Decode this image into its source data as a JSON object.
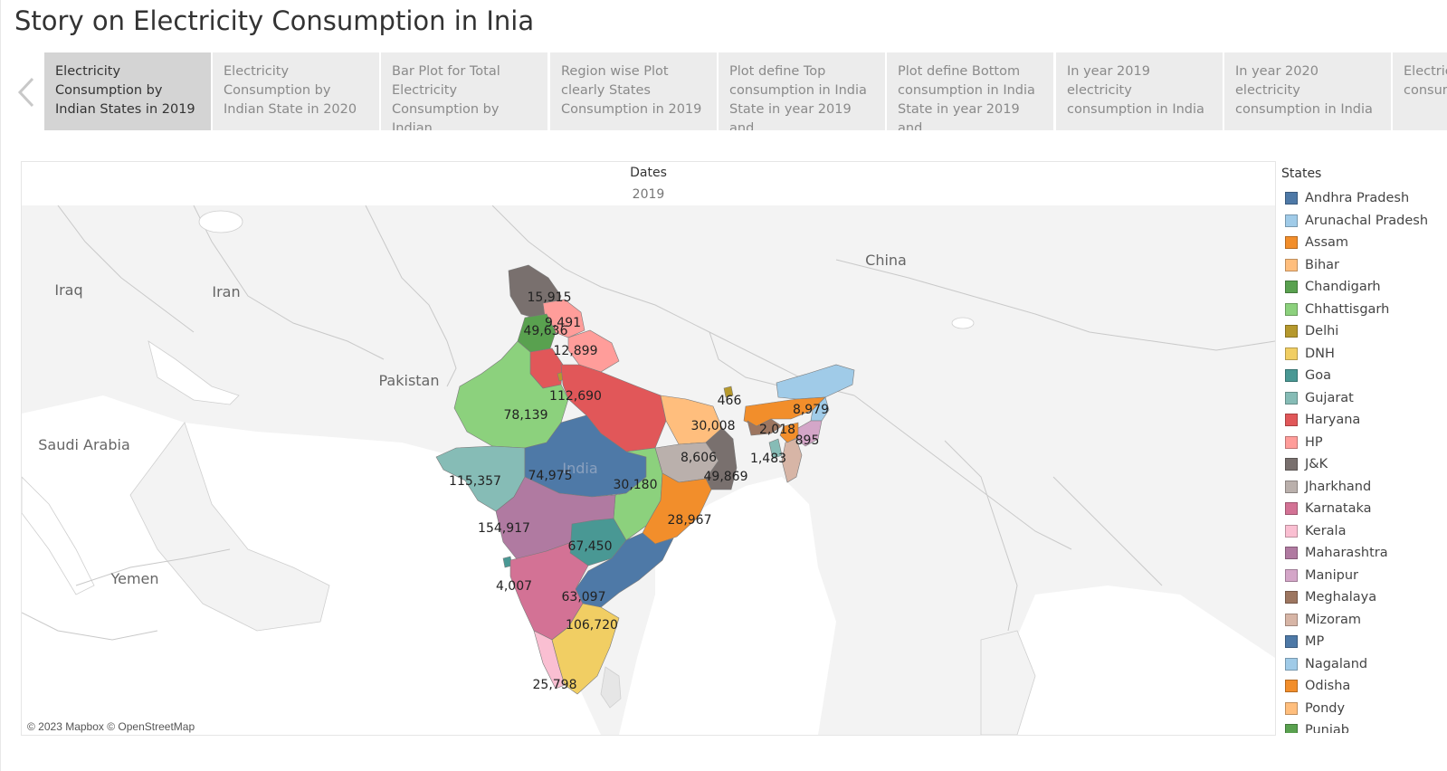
{
  "title": "Story on Electricity Consumption in Inia",
  "story_points": [
    {
      "label": "Electricity Consumption by Indian States in 2019",
      "active": true
    },
    {
      "label": "Electricity Consumption by Indian State in 2020"
    },
    {
      "label": "Bar Plot for Total Electricity Consumption by Indian"
    },
    {
      "label": "Region wise Plot clearly States Consumption in 2019"
    },
    {
      "label": "Plot define Top consumption in India State in year 2019 and"
    },
    {
      "label": "Plot define Bottom consumption in India State in year 2019 and"
    },
    {
      "label": "In year 2019 electricity consumption in India"
    },
    {
      "label": "In year 2020 electricity consumption in India"
    },
    {
      "label": "Electricity consumption per"
    }
  ],
  "viz": {
    "dates_label": "Dates",
    "dates_value": "2019",
    "attribution": "© 2023 Mapbox © OpenStreetMap"
  },
  "map_labels": {
    "countries": [
      "Iraq",
      "Iran",
      "Pakistan",
      "Saudi Arabia",
      "Yemen",
      "China",
      "India"
    ],
    "values": [
      "15,915",
      "9,491",
      "49,636",
      "12,899",
      "112,690",
      "78,139",
      "466",
      "8,979",
      "30,008",
      "2,018",
      "895",
      "1,483",
      "8,606",
      "49,869",
      "115,357",
      "74,975",
      "30,180",
      "154,917",
      "28,967",
      "67,450",
      "4,007",
      "63,097",
      "106,720",
      "25,798"
    ]
  },
  "legend": {
    "title": "States",
    "items": [
      {
        "name": "Andhra Pradesh",
        "color": "#4e79a7"
      },
      {
        "name": "Arunachal Pradesh",
        "color": "#a0cbe8"
      },
      {
        "name": "Assam",
        "color": "#f28e2b"
      },
      {
        "name": "Bihar",
        "color": "#ffbe7d"
      },
      {
        "name": "Chandigarh",
        "color": "#59a14f"
      },
      {
        "name": "Chhattisgarh",
        "color": "#8cd17d"
      },
      {
        "name": "Delhi",
        "color": "#b6992d"
      },
      {
        "name": "DNH",
        "color": "#f1ce63"
      },
      {
        "name": "Goa",
        "color": "#499894"
      },
      {
        "name": "Gujarat",
        "color": "#86bcb6"
      },
      {
        "name": "Haryana",
        "color": "#e15759"
      },
      {
        "name": "HP",
        "color": "#ff9d9a"
      },
      {
        "name": "J&K",
        "color": "#79706e"
      },
      {
        "name": "Jharkhand",
        "color": "#bab0ac"
      },
      {
        "name": "Karnataka",
        "color": "#d37295"
      },
      {
        "name": "Kerala",
        "color": "#fabfd2"
      },
      {
        "name": "Maharashtra",
        "color": "#b07aa1"
      },
      {
        "name": "Manipur",
        "color": "#d4a6c8"
      },
      {
        "name": "Meghalaya",
        "color": "#9d7660"
      },
      {
        "name": "Mizoram",
        "color": "#d7b5a6"
      },
      {
        "name": "MP",
        "color": "#4e79a7"
      },
      {
        "name": "Nagaland",
        "color": "#a0cbe8"
      },
      {
        "name": "Odisha",
        "color": "#f28e2b"
      },
      {
        "name": "Pondy",
        "color": "#ffbe7d"
      },
      {
        "name": "Punjab",
        "color": "#59a14f"
      }
    ]
  }
}
